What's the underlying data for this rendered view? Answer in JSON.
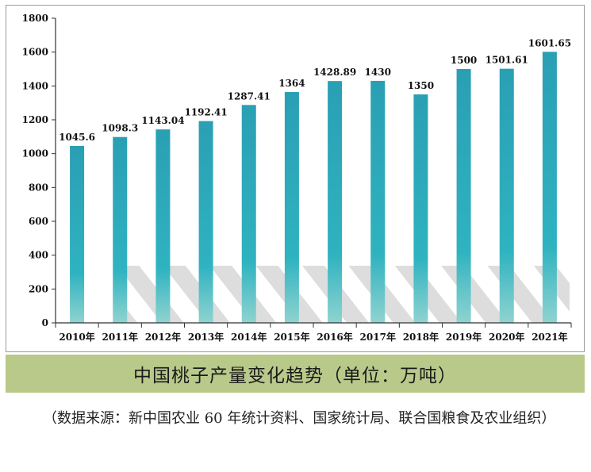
{
  "chart_data": {
    "type": "bar",
    "title": "中国桃子产量变化趋势（单位：万吨）",
    "xlabel": "",
    "ylabel": "",
    "categories": [
      "2010年",
      "2011年",
      "2012年",
      "2013年",
      "2014年",
      "2015年",
      "2016年",
      "2017年",
      "2018年",
      "2019年",
      "2020年",
      "2021年"
    ],
    "values": [
      1045.6,
      1098.3,
      1143.04,
      1192.41,
      1287.41,
      1364,
      1428.89,
      1430,
      1350,
      1500,
      1501.61,
      1601.65
    ],
    "value_labels": [
      "1045.6",
      "1098.3",
      "1143.04",
      "1192.41",
      "1287.41",
      "1364",
      "1428.89",
      "1430",
      "1350",
      "1500",
      "1501.61",
      "1601.65"
    ],
    "ylim": [
      0,
      1800
    ],
    "yticks": [
      "0",
      "200",
      "400",
      "600",
      "800",
      "1000",
      "1200",
      "1400",
      "1600",
      "1800"
    ],
    "grid": false,
    "legend": "none"
  },
  "caption": "中国桃子产量变化趋势（单位：万吨）",
  "source_note": "（数据来源：新中国农业 60 年统计资料、国家统计局、联合国粮食及农业组织）",
  "colors": {
    "bar_top": "#2a9fb4",
    "bar_mid": "#2fb3c0",
    "bar_bottom": "#8fd3d0",
    "axis": "#333333",
    "caption_band": "#b9c98a"
  }
}
